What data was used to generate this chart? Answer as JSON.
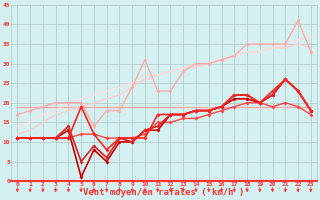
{
  "title": "",
  "xlabel": "Vent moyen/en rafales ( km/h )",
  "ylabel": "",
  "bg_color": "#d4f0f0",
  "grid_color": "#b0c8c8",
  "xlim": [
    -0.5,
    23.5
  ],
  "ylim": [
    0,
    45
  ],
  "yticks": [
    0,
    5,
    10,
    15,
    20,
    25,
    30,
    35,
    40,
    45
  ],
  "xticks": [
    0,
    1,
    2,
    3,
    4,
    5,
    6,
    7,
    8,
    9,
    10,
    11,
    12,
    13,
    14,
    15,
    16,
    17,
    18,
    19,
    20,
    21,
    22,
    23
  ],
  "series": [
    {
      "x": [
        0,
        1,
        2,
        3,
        4,
        5,
        6,
        7,
        8,
        9,
        10,
        11,
        12,
        13,
        14,
        15,
        16,
        17,
        18,
        19,
        20,
        21,
        22,
        23
      ],
      "y": [
        19,
        19,
        19,
        19,
        19,
        19,
        19,
        19,
        19,
        19,
        19,
        19,
        19,
        19,
        19,
        19,
        19,
        19,
        19,
        19,
        19,
        19,
        19,
        19
      ],
      "color": "#ffaaaa",
      "lw": 1.0,
      "marker": null,
      "zorder": 2
    },
    {
      "x": [
        0,
        1,
        2,
        3,
        4,
        5,
        6,
        7,
        8,
        9,
        10,
        11,
        12,
        13,
        14,
        15,
        16,
        17,
        18,
        19,
        20,
        21,
        22,
        23
      ],
      "y": [
        12,
        13,
        15,
        17,
        18,
        19,
        20,
        21,
        22,
        24,
        26,
        27,
        28,
        29,
        29,
        30,
        31,
        32,
        33,
        33,
        34,
        34,
        35,
        34
      ],
      "color": "#ffcccc",
      "lw": 1.0,
      "marker": null,
      "zorder": 2
    },
    {
      "x": [
        0,
        1,
        2,
        3,
        4,
        5,
        6,
        7,
        8,
        9,
        10,
        11,
        12,
        13,
        14,
        15,
        16,
        17,
        18,
        19,
        20,
        21,
        22,
        23
      ],
      "y": [
        14,
        15,
        17,
        18,
        20,
        21,
        22,
        23,
        24,
        25,
        27,
        27,
        28,
        29,
        30,
        30,
        31,
        32,
        33,
        33,
        34,
        35,
        36,
        37
      ],
      "color": "#ffdddd",
      "lw": 1.0,
      "marker": null,
      "zorder": 2
    },
    {
      "x": [
        0,
        1,
        2,
        3,
        4,
        5,
        6,
        7,
        8,
        9,
        10,
        11,
        12,
        13,
        14,
        15,
        16,
        17,
        18,
        19,
        20,
        21,
        22,
        23
      ],
      "y": [
        17,
        18,
        19,
        20,
        20,
        20,
        14,
        18,
        18,
        24,
        31,
        23,
        23,
        28,
        30,
        30,
        31,
        32,
        35,
        35,
        35,
        35,
        41,
        33
      ],
      "color": "#ffaaaa",
      "lw": 1.0,
      "marker": "D",
      "ms": 1.5,
      "zorder": 3
    },
    {
      "x": [
        0,
        1,
        2,
        3,
        4,
        5,
        6,
        7,
        8,
        9,
        10,
        11,
        12,
        13,
        14,
        15,
        16,
        17,
        18,
        19,
        20,
        21,
        22,
        23
      ],
      "y": [
        11,
        11,
        11,
        11,
        11,
        12,
        12,
        11,
        11,
        11,
        12,
        15,
        15,
        16,
        16,
        17,
        18,
        19,
        20,
        20,
        19,
        20,
        19,
        17
      ],
      "color": "#ff4444",
      "lw": 1.0,
      "marker": "D",
      "ms": 1.5,
      "zorder": 4
    },
    {
      "x": [
        0,
        1,
        2,
        3,
        4,
        5,
        6,
        7,
        8,
        9,
        10,
        11,
        12,
        13,
        14,
        15,
        16,
        17,
        18,
        19,
        20,
        21,
        22,
        23
      ],
      "y": [
        11,
        11,
        11,
        11,
        13,
        1,
        8,
        5,
        10,
        10,
        13,
        13,
        17,
        17,
        18,
        18,
        19,
        21,
        21,
        20,
        22,
        26,
        23,
        18
      ],
      "color": "#cc0000",
      "lw": 1.2,
      "marker": "D",
      "ms": 1.5,
      "zorder": 5
    },
    {
      "x": [
        0,
        1,
        2,
        3,
        4,
        5,
        6,
        7,
        8,
        9,
        10,
        11,
        12,
        13,
        14,
        15,
        16,
        17,
        18,
        19,
        20,
        21,
        22,
        23
      ],
      "y": [
        11,
        11,
        11,
        11,
        14,
        5,
        9,
        6,
        11,
        10,
        13,
        14,
        17,
        17,
        18,
        18,
        19,
        22,
        22,
        20,
        22,
        26,
        23,
        18
      ],
      "color": "#dd2222",
      "lw": 1.2,
      "marker": "D",
      "ms": 1.5,
      "zorder": 5
    },
    {
      "x": [
        0,
        1,
        2,
        3,
        4,
        5,
        6,
        7,
        8,
        9,
        10,
        11,
        12,
        13,
        14,
        15,
        16,
        17,
        18,
        19,
        20,
        21,
        22,
        23
      ],
      "y": [
        11,
        11,
        11,
        11,
        11,
        19,
        12,
        8,
        11,
        11,
        11,
        17,
        17,
        17,
        18,
        18,
        19,
        22,
        22,
        20,
        23,
        26,
        23,
        18
      ],
      "color": "#ff2222",
      "lw": 1.2,
      "marker": "D",
      "ms": 1.5,
      "zorder": 5
    }
  ],
  "arrow_color": "#ff3333",
  "tick_label_color": "#ff3333",
  "axis_label_color": "#ff3333",
  "tick_label_size": 4.5,
  "xlabel_size": 6.5
}
